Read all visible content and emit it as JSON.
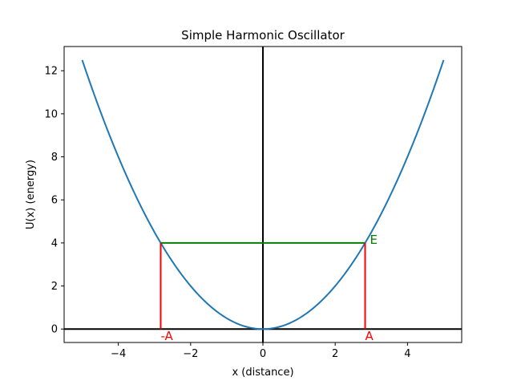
{
  "chart_data": {
    "type": "line",
    "title": "Simple Harmonic Oscillator",
    "xlabel": "x (distance)",
    "ylabel": "U(x) (energy)",
    "xlim": [
      -5.5,
      5.5
    ],
    "ylim": [
      -0.625,
      13.125
    ],
    "xticks": [
      -4,
      -2,
      0,
      2,
      4
    ],
    "xtick_labels": [
      "−4",
      "−2",
      "0",
      "2",
      "4"
    ],
    "yticks": [
      0,
      2,
      4,
      6,
      8,
      10,
      12
    ],
    "ytick_labels": [
      "0",
      "2",
      "4",
      "6",
      "8",
      "10",
      "12"
    ],
    "grid": false,
    "series": [
      {
        "function": "U(x) = 0.5 * x^2",
        "x_range": [
          -5,
          5
        ],
        "x": [
          -5,
          -4,
          -3,
          -2.828,
          -2,
          -1,
          0,
          1,
          2,
          2.828,
          3,
          4,
          5
        ],
        "y": [
          12.5,
          8,
          4.5,
          4,
          2,
          0.5,
          0,
          0.5,
          2,
          4,
          4.5,
          8,
          12.5
        ],
        "color": "#1f77b4"
      }
    ],
    "energy_level": {
      "y": 4,
      "x_from": -2.828,
      "x_to": 2.828,
      "label": "E",
      "color": "#008000"
    },
    "turning_points": [
      {
        "x": -2.828,
        "y_from": 0,
        "y_to": 4,
        "label": "-A",
        "color": "#ff0000"
      },
      {
        "x": 2.828,
        "y_from": 0,
        "y_to": 4,
        "label": "A",
        "color": "#ff0000"
      }
    ],
    "reference_lines": {
      "horizontal_y": 0,
      "vertical_x": 0,
      "color": "#000000"
    }
  }
}
